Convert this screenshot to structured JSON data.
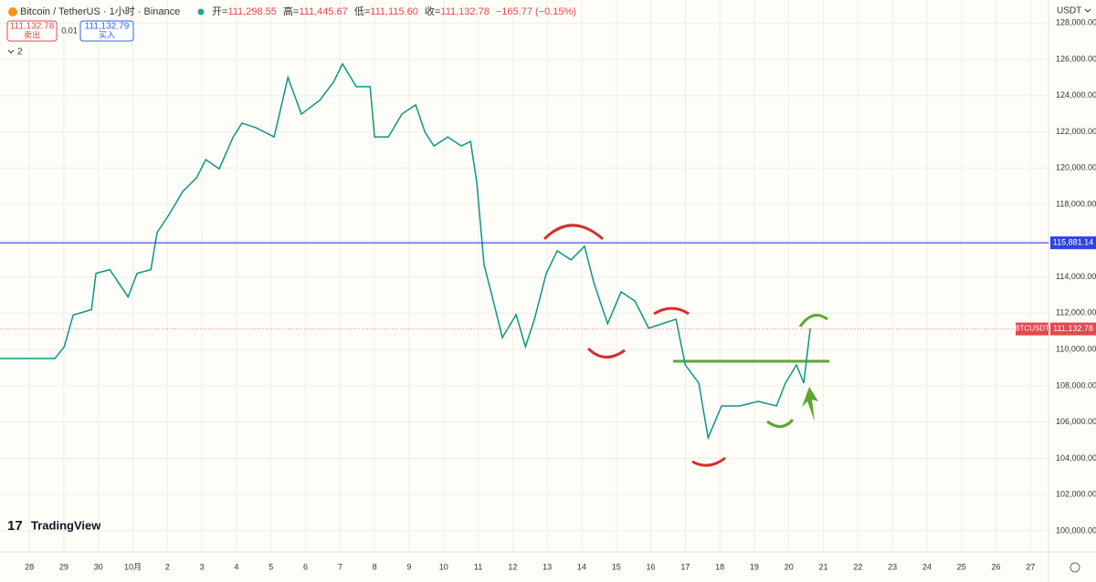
{
  "header": {
    "symbol": "Bitcoin / TetherUS · 1小时 · Binance",
    "open": {
      "label": "开=",
      "value": "111,298.55"
    },
    "high": {
      "label": "高=",
      "value": "111,445.67"
    },
    "low": {
      "label": "低=",
      "value": "111,115.60"
    },
    "close": {
      "label": "收=",
      "value": "111,132.78"
    },
    "change": "−165.77 (−0.15%)",
    "sell_price": "111,132.78",
    "sell_label": "卖出",
    "spread": "0.01",
    "buy_price": "111,132.79",
    "buy_label": "买入",
    "indicators": "2",
    "currency": "USDT",
    "brand": "TradingView"
  },
  "chart_data": {
    "type": "line",
    "color": "#089981",
    "x": [
      -0.85,
      0.74,
      1.01,
      1.27,
      1.8,
      1.93,
      2.33,
      2.86,
      3.12,
      3.52,
      3.7,
      4.05,
      4.44,
      4.84,
      5.11,
      5.5,
      5.9,
      6.16,
      6.56,
      7.09,
      7.49,
      7.88,
      8.41,
      8.81,
      9.07,
      9.47,
      9.87,
      10,
      10.4,
      10.79,
      11.19,
      11.46,
      11.72,
      12.12,
      12.51,
      12.78,
      12.96,
      13.17,
      13.44,
      13.7,
      14.1,
      14.37,
      14.63,
      14.97,
      15.29,
      15.69,
      16.08,
      16.35,
      16.75,
      17.14,
      17.54,
      17.94,
      18.33,
      18.73,
      19,
      19.39,
      19.66,
      20.05,
      20.58,
      21.11,
      21.64,
      21.9,
      22.22,
      22.43,
      22.62
    ],
    "values": [
      109500,
      109500,
      110150,
      111900,
      112200,
      114200,
      114400,
      112900,
      114200,
      114400,
      116450,
      117450,
      118700,
      119460,
      120470,
      119960,
      121700,
      122480,
      122230,
      121720,
      125000,
      122980,
      123740,
      124740,
      125750,
      124490,
      124490,
      121720,
      121720,
      122980,
      123490,
      121980,
      121220,
      121720,
      121220,
      121470,
      119210,
      114680,
      112670,
      110660,
      111920,
      110150,
      111670,
      114180,
      115440,
      114940,
      115690,
      113680,
      111420,
      113180,
      112670,
      111170,
      111420,
      111670,
      109150,
      108150,
      105130,
      106890,
      106890,
      107140,
      106890,
      108150,
      109150,
      108150,
      111170
    ],
    "xlim": [
      -0.85,
      29.52
    ],
    "ylim": [
      98840,
      129270
    ],
    "xticks": [
      {
        "value": 0,
        "label": "28"
      },
      {
        "value": 1,
        "label": "29"
      },
      {
        "value": 2,
        "label": "30"
      },
      {
        "value": 3,
        "label": "10月"
      },
      {
        "value": 4,
        "label": "2"
      },
      {
        "value": 5,
        "label": "3"
      },
      {
        "value": 6,
        "label": "4"
      },
      {
        "value": 7,
        "label": "5"
      },
      {
        "value": 8,
        "label": "6"
      },
      {
        "value": 9,
        "label": "7"
      },
      {
        "value": 10,
        "label": "8"
      },
      {
        "value": 11,
        "label": "9"
      },
      {
        "value": 12,
        "label": "10"
      },
      {
        "value": 13,
        "label": "11"
      },
      {
        "value": 14,
        "label": "12"
      },
      {
        "value": 15,
        "label": "13"
      },
      {
        "value": 16,
        "label": "14"
      },
      {
        "value": 17,
        "label": "15"
      },
      {
        "value": 18,
        "label": "16"
      },
      {
        "value": 19,
        "label": "17"
      },
      {
        "value": 20,
        "label": "18"
      },
      {
        "value": 21,
        "label": "19"
      },
      {
        "value": 22,
        "label": "20"
      },
      {
        "value": 23,
        "label": "21"
      },
      {
        "value": 24,
        "label": "22"
      },
      {
        "value": 25,
        "label": "23"
      },
      {
        "value": 26,
        "label": "24"
      },
      {
        "value": 27,
        "label": "25"
      },
      {
        "value": 28,
        "label": "26"
      },
      {
        "value": 29,
        "label": "27"
      }
    ],
    "yticks": [
      {
        "value": 100000,
        "label": "100,000.00"
      },
      {
        "value": 102000,
        "label": "102,000.00"
      },
      {
        "value": 104000,
        "label": "104,000.00"
      },
      {
        "value": 106000,
        "label": "106,000.00"
      },
      {
        "value": 108000,
        "label": "108,000.00"
      },
      {
        "value": 110000,
        "label": "110,000.00"
      },
      {
        "value": 112000,
        "label": "112,000.00"
      },
      {
        "value": 114000,
        "label": "114,000.00"
      },
      {
        "value": 116000,
        "label": "116,000.00"
      },
      {
        "value": 118000,
        "label": "118,000.00"
      },
      {
        "value": 120000,
        "label": "120,000.00"
      },
      {
        "value": 122000,
        "label": "122,000.00"
      },
      {
        "value": 124000,
        "label": "124,000.00"
      },
      {
        "value": 126000,
        "label": "126,000.00"
      },
      {
        "value": 128000,
        "label": "128,000.00"
      }
    ],
    "grid": true,
    "hline": {
      "value": 115881.14,
      "label": "115,881.14",
      "color": "#2f44d8"
    },
    "last_price": {
      "value": 111132.78,
      "label": "111,132.78",
      "symbol": "BTCUSDT",
      "color": "#e5484d"
    }
  }
}
